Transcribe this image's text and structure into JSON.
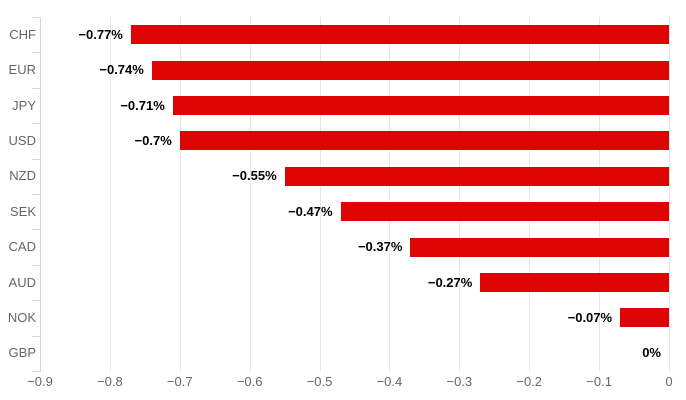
{
  "chart_data": {
    "type": "bar",
    "title": "",
    "xlabel": "",
    "ylabel": "",
    "orientation": "horizontal",
    "categories": [
      "CHF",
      "EUR",
      "JPY",
      "USD",
      "NZD",
      "SEK",
      "CAD",
      "AUD",
      "NOK",
      "GBP"
    ],
    "values": [
      -0.77,
      -0.74,
      -0.71,
      -0.7,
      -0.55,
      -0.47,
      -0.37,
      -0.27,
      -0.07,
      0
    ],
    "bar_labels": [
      "−0.77%",
      "−0.74%",
      "−0.71%",
      "−0.7%",
      "−0.55%",
      "−0.47%",
      "−0.37%",
      "−0.27%",
      "−0.07%",
      "0%"
    ],
    "xlim": [
      -0.9,
      0
    ],
    "x_ticks": [
      -0.9,
      -0.8,
      -0.7,
      -0.6,
      -0.5,
      -0.4,
      -0.3,
      -0.2,
      -0.1,
      0
    ],
    "x_tick_labels": [
      "−0.9",
      "−0.8",
      "−0.7",
      "−0.6",
      "−0.5",
      "−0.4",
      "−0.3",
      "−0.2",
      "−0.1",
      "0"
    ],
    "grid": true,
    "legend": "none",
    "colors": {
      "bar": "#de0404",
      "data_label": "#000000",
      "axis_label": "#666666",
      "gridline": "#e6e6e6",
      "category_axis_line": "#ccd6eb",
      "background": "#ffffff"
    }
  }
}
